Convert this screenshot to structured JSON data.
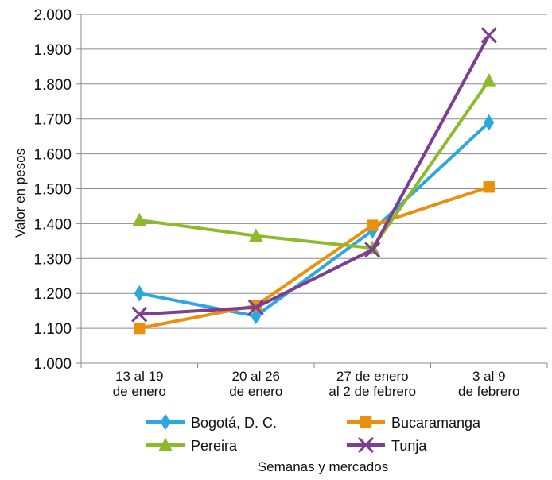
{
  "chart_data": {
    "type": "line",
    "categories": [
      [
        "13 al 19",
        "de enero"
      ],
      [
        "20 al 26",
        "de enero"
      ],
      [
        "27 de enero",
        "al 2 de febrero"
      ],
      [
        "3 al 9",
        "de febrero"
      ]
    ],
    "series": [
      {
        "name": "Bogotá, D. C.",
        "color": "#2AA8DF",
        "marker": "diamond",
        "values": [
          1200,
          1135,
          1380,
          1690
        ]
      },
      {
        "name": "Bucaramanga",
        "color": "#E8910C",
        "marker": "square",
        "values": [
          1100,
          1165,
          1395,
          1505
        ]
      },
      {
        "name": "Pereira",
        "color": "#8CBA2A",
        "marker": "triangle",
        "values": [
          1410,
          1365,
          1330,
          1810
        ]
      },
      {
        "name": "Tunja",
        "color": "#7E3E8F",
        "marker": "x",
        "values": [
          1140,
          1160,
          1325,
          1940
        ]
      }
    ],
    "y_tick_labels": [
      "1.000",
      "1.100",
      "1.200",
      "1.300",
      "1.400",
      "1.500",
      "1.600",
      "1.700",
      "1.800",
      "1.900",
      "2.000"
    ],
    "ylim": [
      1000,
      2000
    ],
    "ylabel": "Valor en pesos",
    "xlabel": "Semanas y mercados",
    "grid": "horizontal",
    "legend_position": "bottom"
  }
}
